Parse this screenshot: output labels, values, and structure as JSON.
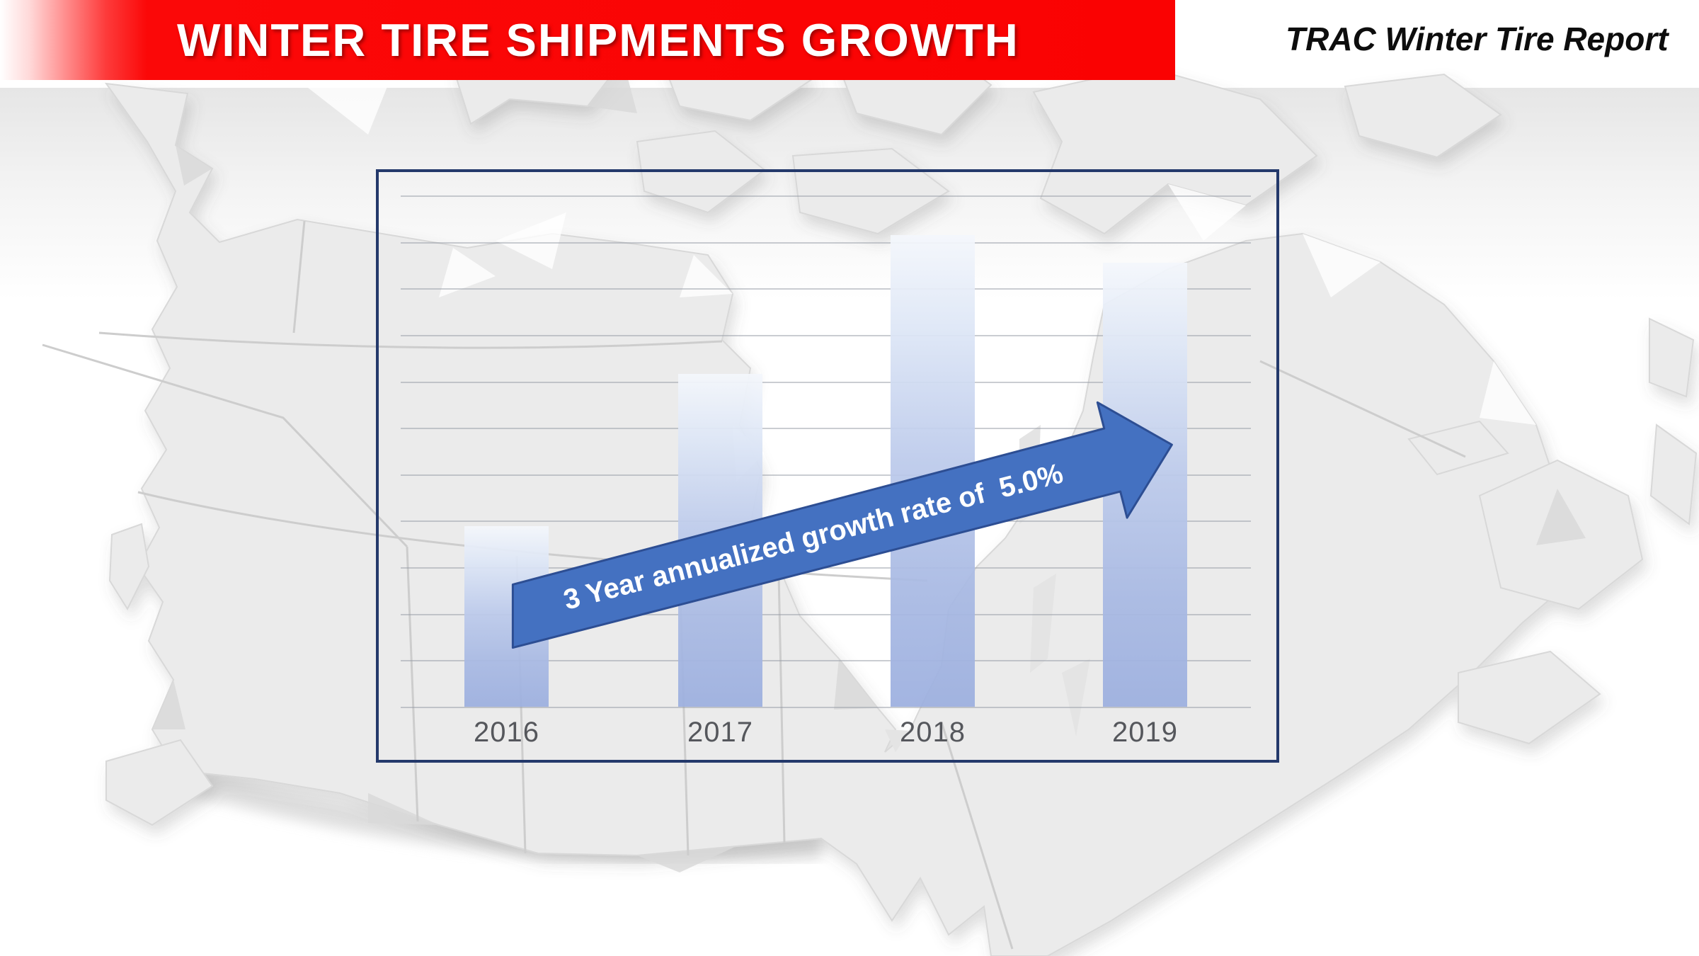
{
  "header": {
    "title": "WINTER TIRE SHIPMENTS GROWTH",
    "report_label": "TRAC Winter Tire Report",
    "banner_color": "#fa0202"
  },
  "chart_data": {
    "type": "bar",
    "title": "",
    "categories": [
      "2016",
      "2017",
      "2018",
      "2019"
    ],
    "values": [
      3.9,
      7.2,
      10.2,
      9.6
    ],
    "value_units": "relative gridline units (no numeric y-axis labels shown in chart)",
    "ylim": [
      0,
      11.5
    ],
    "gridline_count": 12,
    "grid": true,
    "xlabel": "",
    "ylabel": "",
    "legend_position": "none",
    "annotation": "3 Year annualized growth rate of  5.0%",
    "growth_rate": "5.0%",
    "colors": {
      "bar_gradient_top": "#f4f7fc",
      "bar_gradient_bottom": "#9cafdf",
      "arrow_fill": "#4471c1",
      "arrow_stroke": "#2d4e93",
      "chart_border": "#24396b",
      "axis_label": "#55575c",
      "map_land": "#ebebeb"
    }
  }
}
